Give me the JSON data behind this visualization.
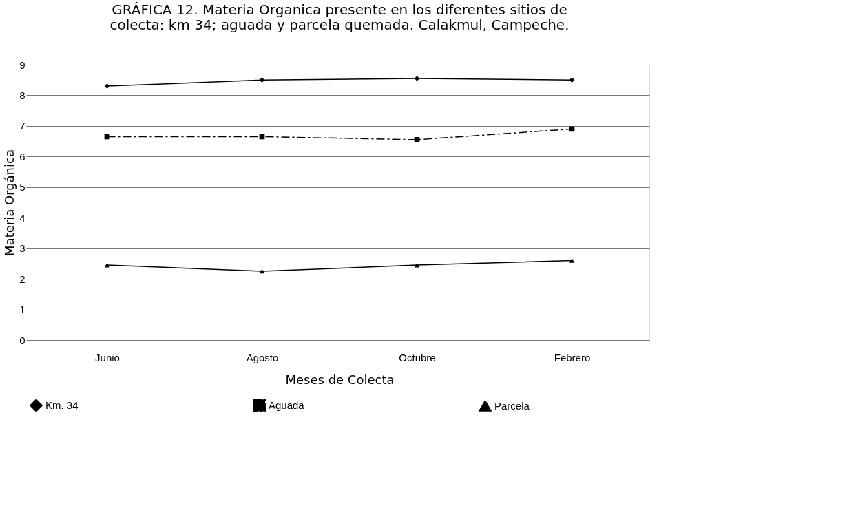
{
  "chart_data": {
    "type": "line",
    "title": [
      "GRÁFICA 12. Materia Organica presente en los diferentes sitios de",
      "colecta: km 34; aguada y parcela quemada. Calakmul, Campeche."
    ],
    "xlabel": "Meses de Colecta",
    "ylabel": "Materia Orgánica",
    "categories": [
      "Junio",
      "Agosto",
      "Octubre",
      "Febrero"
    ],
    "series": [
      {
        "name": "Km. 34",
        "color": "#000000",
        "marker": "diamond",
        "line_style": "solid",
        "values": [
          8.3,
          8.5,
          8.55,
          8.5
        ]
      },
      {
        "name": "Aguada",
        "color": "#000000",
        "marker": "square",
        "line_style": "dashed",
        "values": [
          6.65,
          6.65,
          6.55,
          6.9
        ]
      },
      {
        "name": "Parcela",
        "color": "#000000",
        "marker": "triangle",
        "line_style": "solid",
        "values": [
          2.45,
          2.25,
          2.45,
          2.6
        ]
      }
    ],
    "ylim": [
      0,
      9
    ],
    "yticks": [
      0,
      1,
      2,
      3,
      4,
      5,
      6,
      7,
      8,
      9
    ],
    "grid": "y",
    "legend": "bottom"
  }
}
